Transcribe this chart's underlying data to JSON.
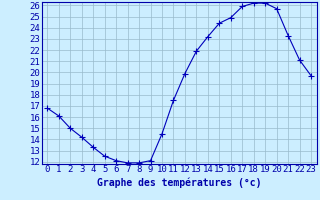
{
  "x": [
    0,
    1,
    2,
    3,
    4,
    5,
    6,
    7,
    8,
    9,
    10,
    11,
    12,
    13,
    14,
    15,
    16,
    17,
    18,
    19,
    20,
    21,
    22,
    23
  ],
  "y": [
    16.8,
    16.1,
    15.0,
    14.2,
    13.3,
    12.5,
    12.1,
    11.9,
    11.9,
    12.1,
    14.5,
    17.5,
    19.9,
    21.9,
    23.2,
    24.4,
    24.9,
    25.9,
    26.2,
    26.2,
    25.7,
    23.3,
    21.1,
    19.7
  ],
  "line_color": "#0000bb",
  "marker": "+",
  "marker_size": 4,
  "bg_color": "#cceeff",
  "grid_color": "#99bbcc",
  "axis_color": "#0000aa",
  "text_color": "#0000aa",
  "xlabel": "Graphe des températures (°c)",
  "xlabel_fontsize": 7,
  "tick_fontsize": 6.5,
  "ylim_min": 12,
  "ylim_max": 26,
  "xlim_min": 0,
  "xlim_max": 23,
  "yticks": [
    12,
    13,
    14,
    15,
    16,
    17,
    18,
    19,
    20,
    21,
    22,
    23,
    24,
    25,
    26
  ],
  "xticks": [
    0,
    1,
    2,
    3,
    4,
    5,
    6,
    7,
    8,
    9,
    10,
    11,
    12,
    13,
    14,
    15,
    16,
    17,
    18,
    19,
    20,
    21,
    22,
    23
  ]
}
